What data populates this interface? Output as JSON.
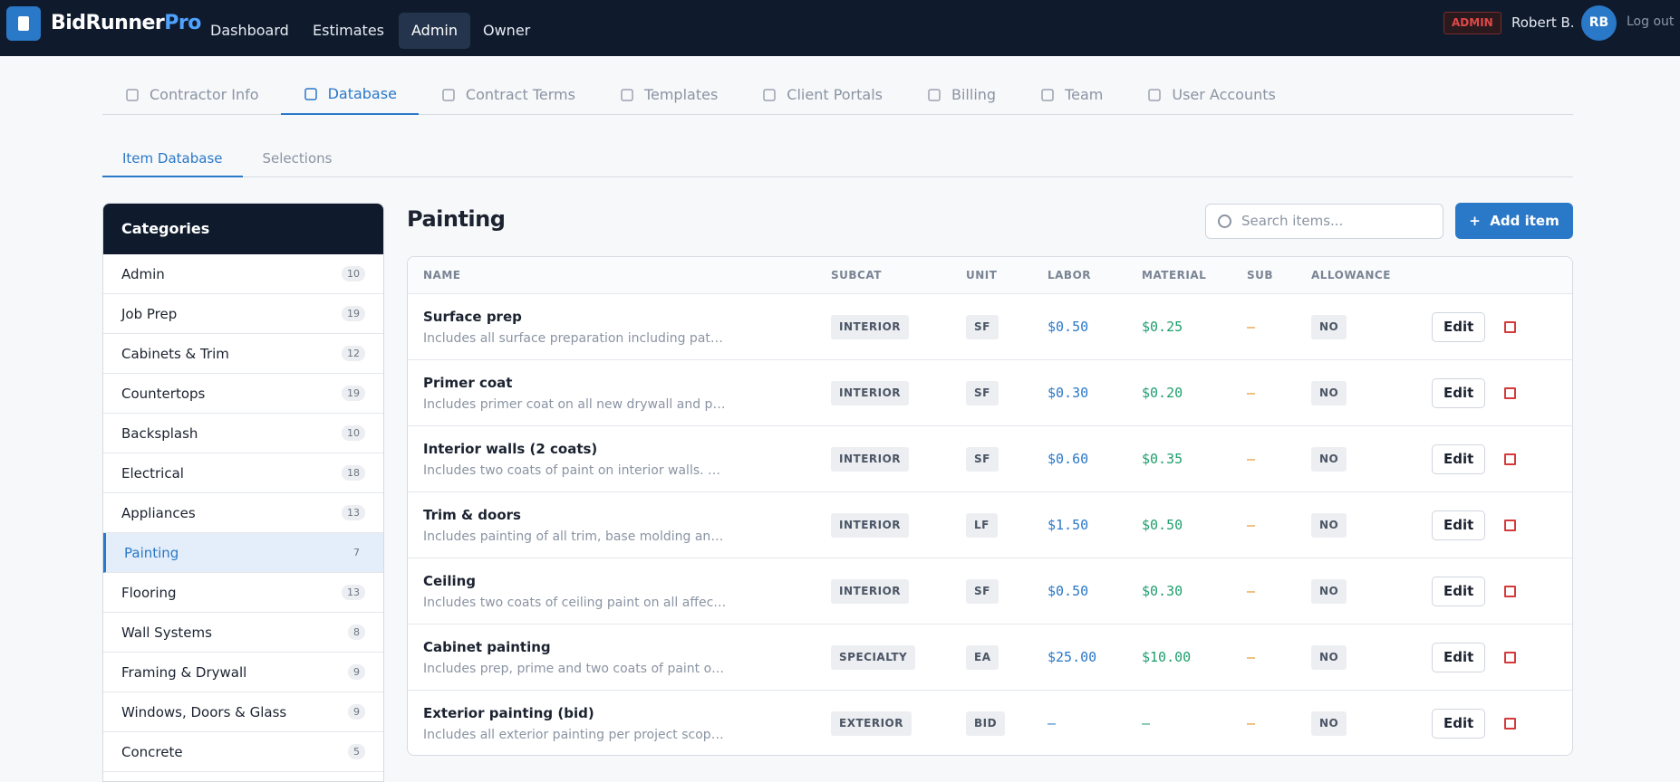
{
  "header": {
    "brand": "BidRunner",
    "brand_accent": "Pro",
    "nav": [
      "Dashboard",
      "Estimates",
      "Admin",
      "Owner"
    ],
    "badge": "ADMIN",
    "user": "Robert B.",
    "avatar": "RB",
    "logout": "Log out"
  },
  "tabs": [
    "Contractor Info",
    "Database",
    "Contract Terms",
    "Templates",
    "Client Portals",
    "Billing",
    "Team",
    "User Accounts"
  ],
  "subtabs": [
    "Item Database",
    "Selections"
  ],
  "sidebar": {
    "title": "Categories",
    "items": [
      {
        "name": "Admin",
        "count": 10
      },
      {
        "name": "Job Prep",
        "count": 19
      },
      {
        "name": "Cabinets & Trim",
        "count": 12
      },
      {
        "name": "Countertops",
        "count": 19
      },
      {
        "name": "Backsplash",
        "count": 10
      },
      {
        "name": "Electrical",
        "count": 18
      },
      {
        "name": "Appliances",
        "count": 13
      },
      {
        "name": "Painting",
        "count": 7
      },
      {
        "name": "Flooring",
        "count": 13
      },
      {
        "name": "Wall Systems",
        "count": 8
      },
      {
        "name": "Framing & Drywall",
        "count": 9
      },
      {
        "name": "Windows, Doors & Glass",
        "count": 9
      },
      {
        "name": "Concrete",
        "count": 5
      }
    ]
  },
  "main": {
    "title": "Painting",
    "search": "Search items...",
    "add": "Add item"
  },
  "table": {
    "headers": [
      "NAME",
      "SUBCAT",
      "UNIT",
      "LABOR",
      "MATERIAL",
      "SUB",
      "ALLOWANCE"
    ],
    "rows": [
      {
        "name": "Surface prep",
        "desc": "Includes all surface preparation including patching, ...",
        "subcat": "INTERIOR",
        "unit": "SF",
        "labor": "$0.50",
        "material": "$0.25",
        "sub": "—",
        "allowance": "NO",
        "action": "Edit"
      },
      {
        "name": "Primer coat",
        "desc": "Includes primer coat on all new drywall and patched ...",
        "subcat": "INTERIOR",
        "unit": "SF",
        "labor": "$0.30",
        "material": "$0.20",
        "sub": "—",
        "allowance": "NO",
        "action": "Edit"
      },
      {
        "name": "Interior walls (2 coats)",
        "desc": "Includes two coats of paint on interior walls. See pro...",
        "subcat": "INTERIOR",
        "unit": "SF",
        "labor": "$0.60",
        "material": "$0.35",
        "sub": "—",
        "allowance": "NO",
        "action": "Edit"
      },
      {
        "name": "Trim & doors",
        "desc": "Includes painting of all trim, base molding and doors...",
        "subcat": "INTERIOR",
        "unit": "LF",
        "labor": "$1.50",
        "material": "$0.50",
        "sub": "—",
        "allowance": "NO",
        "action": "Edit"
      },
      {
        "name": "Ceiling",
        "desc": "Includes two coats of ceiling paint on all affected cei...",
        "subcat": "INTERIOR",
        "unit": "SF",
        "labor": "$0.50",
        "material": "$0.30",
        "sub": "—",
        "allowance": "NO",
        "action": "Edit"
      },
      {
        "name": "Cabinet painting",
        "desc": "Includes prep, prime and two coats of paint on cabin...",
        "subcat": "SPECIALTY",
        "unit": "EA",
        "labor": "$25.00",
        "material": "$10.00",
        "sub": "—",
        "allowance": "NO",
        "action": "Edit"
      },
      {
        "name": "Exterior painting (bid)",
        "desc": "Includes all exterior painting per project scope. Sub...",
        "subcat": "EXTERIOR",
        "unit": "BID",
        "labor": "—",
        "material": "—",
        "sub": "—",
        "allowance": "NO",
        "action": "Edit"
      }
    ]
  }
}
